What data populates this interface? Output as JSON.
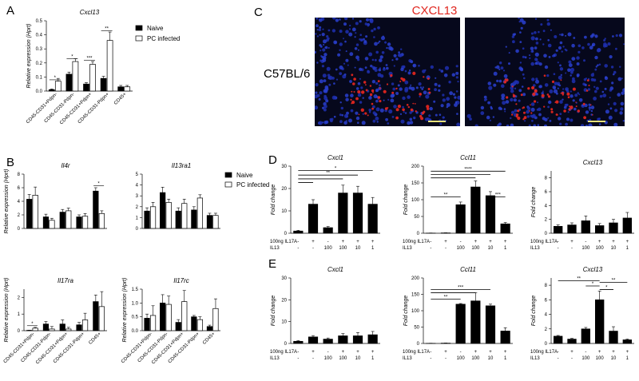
{
  "panels": {
    "A": "A",
    "B": "B",
    "C": "C",
    "D": "D",
    "E": "E"
  },
  "legend": {
    "naive": "Naive",
    "infected": "PC infected"
  },
  "microscopy": {
    "title": "CXCL13",
    "strain": "C57BL/6"
  },
  "colors": {
    "naive": "#000000",
    "infected": "#ffffff",
    "stain": "#e0261f",
    "nuclei": "#1f2fb0"
  },
  "chart_data": [
    {
      "id": "A",
      "type": "bar",
      "title": "Cxcl13",
      "ylabel": "Relative expression (Hprt)",
      "ylim": [
        0,
        0.5
      ],
      "yticks": [
        "0.0",
        "0.1",
        "0.2",
        "0.3",
        "0.4",
        "0.5"
      ],
      "categories": [
        "CD45-CD31+Pdpn-",
        "CD45-CD31-Pdpn-",
        "CD45-CD31+Pdpn+",
        "CD45-CD31-Pdpn+",
        "CD45+"
      ],
      "series": [
        {
          "name": "Naive",
          "values": [
            0.01,
            0.12,
            0.05,
            0.09,
            0.03
          ],
          "err": [
            0.005,
            0.015,
            0.01,
            0.015,
            0.01
          ]
        },
        {
          "name": "PC infected",
          "values": [
            0.07,
            0.21,
            0.19,
            0.36,
            0.03
          ],
          "err": [
            0.02,
            0.02,
            0.02,
            0.06,
            0.01
          ]
        }
      ],
      "sig": [
        {
          "cat": 0,
          "label": "*",
          "level": 0.08
        },
        {
          "cat": 1,
          "label": "*",
          "level": 0.23
        },
        {
          "cat": 2,
          "label": "***",
          "level": 0.22
        },
        {
          "cat": 3,
          "label": "**",
          "level": 0.43
        }
      ]
    },
    {
      "id": "B1",
      "type": "bar",
      "title": "Il4r",
      "ylabel": "Relative expression (Hprt)",
      "ylim": [
        0,
        8
      ],
      "yticks": [
        "0",
        "2",
        "4",
        "6",
        "8"
      ],
      "categories": [
        "CD45-CD31+Pdpn-",
        "CD45-CD31-Pdpn-",
        "CD45-CD31+Pdpn+",
        "CD45-CD31-Pdpn+",
        "CD45+"
      ],
      "series": [
        {
          "name": "Naive",
          "values": [
            4.3,
            1.7,
            2.4,
            1.7,
            5.5
          ],
          "err": [
            0.7,
            0.4,
            0.4,
            0.3,
            0.5
          ]
        },
        {
          "name": "PC infected",
          "values": [
            4.9,
            1.2,
            2.6,
            1.8,
            2.2
          ],
          "err": [
            1.2,
            0.3,
            0.4,
            0.4,
            0.4
          ]
        }
      ],
      "sig": [
        {
          "cat": 4,
          "label": "*",
          "level": 6.3
        }
      ]
    },
    {
      "id": "B2",
      "type": "bar",
      "title": "Il13ra1",
      "ylabel": "",
      "ylim": [
        0,
        5
      ],
      "yticks": [
        "0",
        "1",
        "2",
        "3",
        "4",
        "5"
      ],
      "categories": [
        "CD45-CD31+Pdpn-",
        "CD45-CD31-Pdpn-",
        "CD45-CD31+Pdpn+",
        "CD45-CD31-Pdpn+",
        "CD45+"
      ],
      "series": [
        {
          "name": "Naive",
          "values": [
            1.6,
            3.3,
            1.6,
            1.7,
            1.2
          ],
          "err": [
            0.3,
            0.5,
            0.3,
            0.3,
            0.2
          ]
        },
        {
          "name": "PC infected",
          "values": [
            2.0,
            2.4,
            2.3,
            2.8,
            1.2
          ],
          "err": [
            0.4,
            0.3,
            0.4,
            0.3,
            0.2
          ]
        }
      ],
      "sig": []
    },
    {
      "id": "B3",
      "type": "bar",
      "title": "Il17ra",
      "ylabel": "Relative expression (Hprt)",
      "ylim": [
        0,
        2.5
      ],
      "yticks": [
        "0",
        "1",
        "2"
      ],
      "categories": [
        "CD45-CD31+Pdpn-",
        "CD45-CD31-Pdpn-",
        "CD45-CD31+Pdpn+",
        "CD45-CD31-Pdpn+",
        "CD45+"
      ],
      "series": [
        {
          "name": "Naive",
          "values": [
            0.02,
            0.4,
            0.4,
            0.35,
            1.75
          ],
          "err": [
            0.01,
            0.15,
            0.25,
            0.15,
            0.4
          ]
        },
        {
          "name": "PC infected",
          "values": [
            0.15,
            0.1,
            0.1,
            0.65,
            1.45
          ],
          "err": [
            0.05,
            0.15,
            0.1,
            0.4,
            0.9
          ]
        }
      ],
      "sig": [
        {
          "cat": 0,
          "label": "*",
          "level": 0.3
        }
      ]
    },
    {
      "id": "B4",
      "type": "bar",
      "title": "Il17rc",
      "ylabel": "Relative expression (Hprt)",
      "ylim": [
        0,
        1.5
      ],
      "yticks": [
        "0.0",
        "0.5",
        "1.0",
        "1.5"
      ],
      "categories": [
        "CD45-CD31+Pdpn-",
        "CD45-CD31-Pdpn-",
        "CD45-CD31+Pdpn+",
        "CD45-CD31-Pdpn+",
        "CD45+"
      ],
      "series": [
        {
          "name": "Naive",
          "values": [
            0.45,
            1.0,
            0.3,
            0.5,
            0.15
          ],
          "err": [
            0.15,
            0.3,
            0.1,
            0.05,
            0.05
          ]
        },
        {
          "name": "PC infected",
          "values": [
            0.55,
            0.95,
            1.05,
            0.4,
            0.8
          ],
          "err": [
            0.35,
            0.3,
            0.4,
            0.1,
            0.35
          ]
        }
      ],
      "sig": []
    },
    {
      "id": "D1",
      "type": "bar",
      "title": "Cxcl1",
      "ylabel": "Fold change",
      "ylim": [
        0,
        30
      ],
      "yticks": [
        "0",
        "10",
        "20",
        "30"
      ],
      "rows": [
        {
          "label": "100ng IL17A",
          "values": [
            "-",
            "+",
            "-",
            "+",
            "+",
            "+"
          ]
        },
        {
          "label": "IL13",
          "values": [
            "-",
            "-",
            "100",
            "100",
            "10",
            "1"
          ]
        }
      ],
      "values": [
        1,
        13,
        2.5,
        18,
        18,
        13
      ],
      "err": [
        0.3,
        2,
        0.5,
        3.5,
        3,
        3
      ],
      "sig": [
        {
          "from": 0,
          "to": 5,
          "label": "*",
          "level": 28
        },
        {
          "from": 0,
          "to": 4,
          "label": "**",
          "level": 26
        },
        {
          "from": 0,
          "to": 3,
          "label": "",
          "level": 24.3
        },
        {
          "from": 0,
          "to": 1,
          "label": "",
          "level": 22.7
        }
      ]
    },
    {
      "id": "D2",
      "type": "bar",
      "title": "Ccl11",
      "ylabel": "Fold change",
      "ylim": [
        0,
        200
      ],
      "yticks": [
        "0",
        "50",
        "100",
        "150",
        "200"
      ],
      "rows": [
        {
          "label": "100ng IL17A",
          "values": [
            "-",
            "+",
            "-",
            "+",
            "+",
            "+"
          ]
        },
        {
          "label": "IL13",
          "values": [
            "-",
            "-",
            "100",
            "100",
            "10",
            "1"
          ]
        }
      ],
      "values": [
        0.5,
        1,
        85,
        138,
        112,
        28
      ],
      "err": [
        0.3,
        0.3,
        8,
        18,
        12,
        4
      ],
      "sig": [
        {
          "from": 0,
          "to": 5,
          "label": "****",
          "level": 185
        },
        {
          "from": 0,
          "to": 4,
          "label": "",
          "level": 175
        },
        {
          "from": 0,
          "to": 3,
          "label": "",
          "level": 165
        },
        {
          "from": 0,
          "to": 2,
          "label": "**",
          "level": 108
        },
        {
          "from": 4,
          "to": 5,
          "label": "***",
          "level": 108
        }
      ]
    },
    {
      "id": "D3",
      "type": "bar",
      "title": "Cxcl13",
      "ylabel": "Fold change",
      "ylim": [
        0,
        9
      ],
      "yticks": [
        "0",
        "2",
        "4",
        "6",
        "8"
      ],
      "rows": [
        {
          "label": "100ng IL17A",
          "values": [
            "-",
            "+",
            "-",
            "+",
            "+",
            "+"
          ]
        },
        {
          "label": "IL13",
          "values": [
            "-",
            "-",
            "100",
            "100",
            "10",
            "1"
          ]
        }
      ],
      "values": [
        1,
        1.2,
        1.8,
        1.1,
        1.5,
        2.2
      ],
      "err": [
        0.2,
        0.3,
        0.7,
        0.3,
        0.5,
        0.8
      ],
      "sig": []
    },
    {
      "id": "E1",
      "type": "bar",
      "title": "Cxcl1",
      "ylabel": "Fold change",
      "ylim": [
        0,
        30
      ],
      "yticks": [
        "0",
        "10",
        "20",
        "30"
      ],
      "rows": [
        {
          "label": "100ng IL17A",
          "values": [
            "-",
            "+",
            "-",
            "+",
            "+",
            "+"
          ]
        },
        {
          "label": "IL13",
          "values": [
            "-",
            "-",
            "100",
            "100",
            "10",
            "1"
          ]
        }
      ],
      "values": [
        1,
        3,
        2,
        3.5,
        3.5,
        4
      ],
      "err": [
        0.3,
        0.6,
        0.5,
        1,
        1.5,
        1.5
      ],
      "sig": []
    },
    {
      "id": "E2",
      "type": "bar",
      "title": "Ccl11",
      "ylabel": "Fold change",
      "ylim": [
        0,
        200
      ],
      "yticks": [
        "0",
        "50",
        "100",
        "150",
        "200"
      ],
      "rows": [
        {
          "label": "100ng IL17A",
          "values": [
            "-",
            "+",
            "-",
            "+",
            "+",
            "+"
          ]
        },
        {
          "label": "IL13",
          "values": [
            "-",
            "-",
            "100",
            "100",
            "10",
            "1"
          ]
        }
      ],
      "values": [
        0.5,
        1,
        120,
        130,
        115,
        38
      ],
      "err": [
        0.3,
        0.3,
        2,
        25,
        5,
        10
      ],
      "sig": [
        {
          "from": 0,
          "to": 4,
          "label": "***",
          "level": 165
        },
        {
          "from": 0,
          "to": 3,
          "label": "",
          "level": 155
        },
        {
          "from": 0,
          "to": 2,
          "label": "**",
          "level": 135
        }
      ]
    },
    {
      "id": "E3",
      "type": "bar",
      "title": "Cxcl13",
      "ylabel": "Fold change",
      "ylim": [
        0,
        9
      ],
      "yticks": [
        "0",
        "2",
        "4",
        "6",
        "8"
      ],
      "rows": [
        {
          "label": "100ng IL17A",
          "values": [
            "-",
            "+",
            "-",
            "+",
            "+",
            "+"
          ]
        },
        {
          "label": "IL13",
          "values": [
            "-",
            "-",
            "100",
            "100",
            "10",
            "1"
          ]
        }
      ],
      "values": [
        1,
        0.6,
        2,
        6,
        1.7,
        0.5
      ],
      "err": [
        0.1,
        0.1,
        0.2,
        1.2,
        0.6,
        0.1
      ],
      "sig": [
        {
          "from": 0,
          "to": 3,
          "label": "**",
          "level": 8.6
        },
        {
          "from": 2,
          "to": 3,
          "label": "*",
          "level": 7.9
        },
        {
          "from": 3,
          "to": 4,
          "label": "*",
          "level": 7.4
        },
        {
          "from": 3,
          "to": 5,
          "label": "**",
          "level": 8.4
        }
      ]
    }
  ]
}
